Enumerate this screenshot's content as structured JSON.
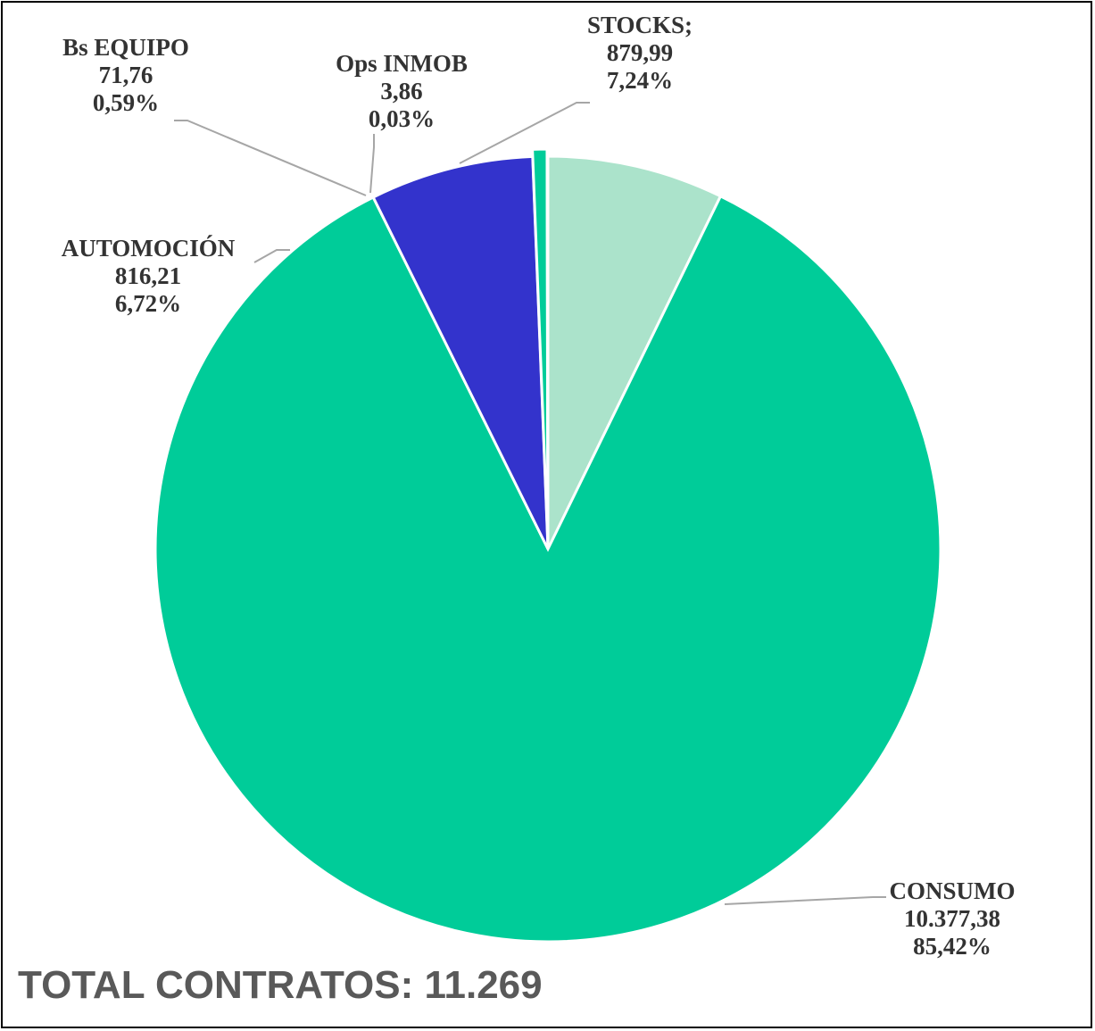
{
  "chart_data": {
    "type": "pie",
    "slices": [
      {
        "category": "STOCKS;",
        "value_label": "879,99",
        "percent_label": "7,24%",
        "value": 879.99,
        "percent": 7.24,
        "color": "#abe3cb"
      },
      {
        "category": "CONSUMO",
        "value_label": "10.377,38",
        "percent_label": "85,42%",
        "value": 10377.38,
        "percent": 85.42,
        "color": "#00cc99"
      },
      {
        "category": "AUTOMOCIÓN",
        "value_label": "816,21",
        "percent_label": "6,72%",
        "value": 816.21,
        "percent": 6.72,
        "color": "#3333cc"
      },
      {
        "category": "Bs EQUIPO",
        "value_label": "71,76",
        "percent_label": "0,59%",
        "value": 71.76,
        "percent": 0.59,
        "color": "#00cc99"
      },
      {
        "category": "Ops INMOB",
        "value_label": "3,86",
        "percent_label": "0,03%",
        "value": 3.86,
        "percent": 0.03,
        "color": "#00cc99"
      }
    ],
    "start_angle_deg": 0,
    "direction": "clockwise",
    "total_text": "TOTAL CONTRATOS: 11.269"
  }
}
